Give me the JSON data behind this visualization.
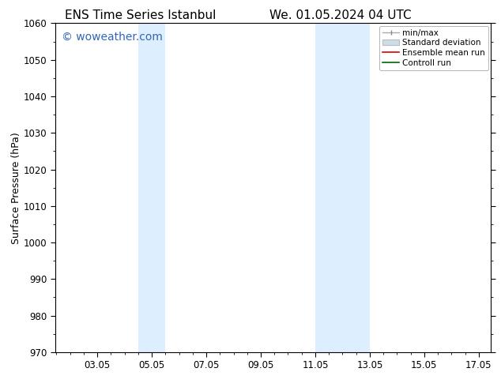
{
  "title_left": "ENS Time Series Istanbul",
  "title_right": "We. 01.05.2024 04 UTC",
  "ylabel": "Surface Pressure (hPa)",
  "ylim": [
    970,
    1060
  ],
  "yticks": [
    970,
    980,
    990,
    1000,
    1010,
    1020,
    1030,
    1040,
    1050,
    1060
  ],
  "xlim": [
    1.5,
    17.5
  ],
  "xticks": [
    3.05,
    5.05,
    7.05,
    9.05,
    11.05,
    13.05,
    15.05,
    17.05
  ],
  "xtick_labels": [
    "03.05",
    "05.05",
    "07.05",
    "09.05",
    "11.05",
    "13.05",
    "15.05",
    "17.05"
  ],
  "watermark": "© woweather.com",
  "watermark_color": "#3366bb",
  "background_color": "#ffffff",
  "plot_bg_color": "#ffffff",
  "shaded_bands": [
    {
      "xmin": 4.55,
      "xmax": 5.55
    },
    {
      "xmin": 11.05,
      "xmax": 13.05
    }
  ],
  "shade_color": "#ddeeff",
  "title_fontsize": 11,
  "tick_fontsize": 8.5,
  "ylabel_fontsize": 9,
  "watermark_fontsize": 10,
  "legend_fontsize": 7.5
}
